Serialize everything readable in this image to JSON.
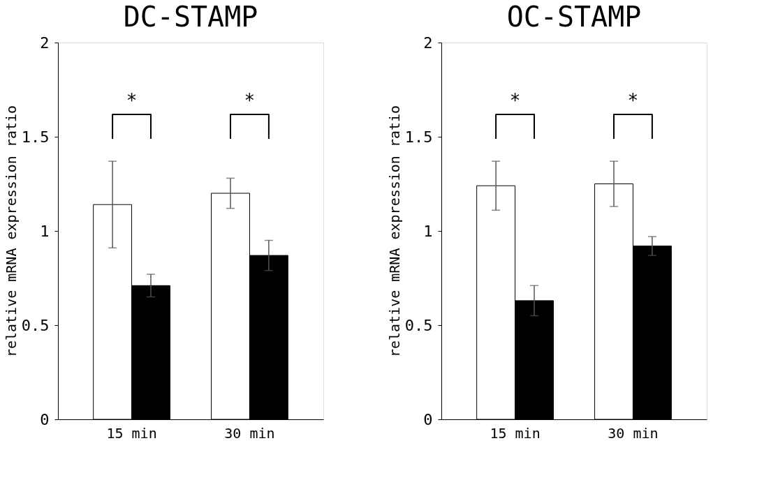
{
  "chart_data": [
    {
      "type": "bar",
      "title": "DC-STAMP",
      "ylabel": "relative mRNA expression ratio",
      "categories": [
        "15 min",
        "30 min"
      ],
      "ylim": [
        0,
        2
      ],
      "yticks": [
        0,
        0.5,
        1,
        1.5,
        2
      ],
      "grid": false,
      "series": [
        {
          "color": "#ffffff",
          "values": [
            1.14,
            1.2
          ],
          "errors": [
            0.23,
            0.08
          ]
        },
        {
          "color": "#000000",
          "values": [
            0.71,
            0.87
          ],
          "errors": [
            0.06,
            0.08
          ]
        }
      ],
      "annotations": [
        "*",
        "*"
      ]
    },
    {
      "type": "bar",
      "title": "OC-STAMP",
      "ylabel": "relative mRNA expression ratio",
      "categories": [
        "15 min",
        "30 min"
      ],
      "ylim": [
        0,
        2
      ],
      "yticks": [
        0,
        0.5,
        1,
        1.5,
        2
      ],
      "grid": false,
      "series": [
        {
          "color": "#ffffff",
          "values": [
            1.24,
            1.25
          ],
          "errors": [
            0.13,
            0.12
          ]
        },
        {
          "color": "#000000",
          "values": [
            0.63,
            0.92
          ],
          "errors": [
            0.08,
            0.05
          ]
        }
      ],
      "annotations": [
        "*",
        "*"
      ]
    }
  ]
}
